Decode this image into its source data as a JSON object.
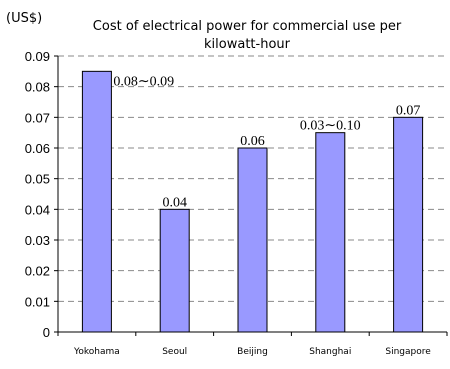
{
  "chart_data": {
    "type": "bar",
    "title_line1": "Cost of electrical power for commercial use per",
    "title_line2": "kilowatt-hour",
    "unit_label": "(US$)",
    "categories": [
      "Yokohama",
      "Seoul",
      "Beijing",
      "Shanghai",
      "Singapore"
    ],
    "values": [
      0.085,
      0.04,
      0.06,
      0.065,
      0.07
    ],
    "data_labels": [
      "0.08∼0.09",
      "0.04",
      "0.06",
      "0.03∼0.10",
      "0.07"
    ],
    "ylim": [
      0,
      0.09
    ],
    "yticks": [
      "0",
      "0.01",
      "0.02",
      "0.03",
      "0.04",
      "0.05",
      "0.06",
      "0.07",
      "0.08",
      "0.09"
    ],
    "grid": "dashed horizontal",
    "bar_color": "#9999ff",
    "legend": "none"
  }
}
